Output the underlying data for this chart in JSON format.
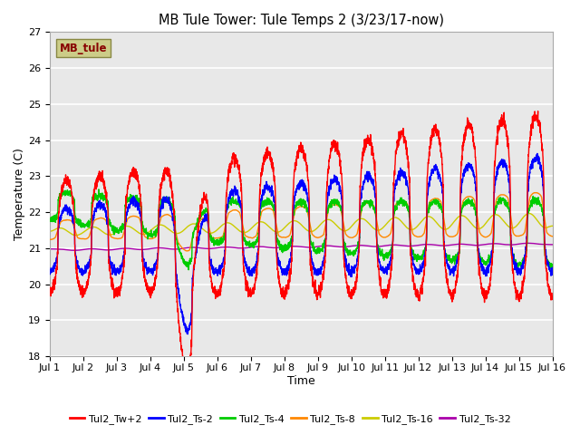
{
  "title": "MB Tule Tower: Tule Temps 2 (3/23/17-now)",
  "xlabel": "Time",
  "ylabel": "Temperature (C)",
  "ylim": [
    18.0,
    27.0
  ],
  "yticks": [
    18.0,
    19.0,
    20.0,
    21.0,
    22.0,
    23.0,
    24.0,
    25.0,
    26.0,
    27.0
  ],
  "xlim": [
    0,
    15
  ],
  "xtick_labels": [
    "Jul 1",
    "Jul 2",
    "Jul 3",
    "Jul 4",
    "Jul 5",
    "Jul 6",
    "Jul 7",
    "Jul 8",
    "Jul 9",
    "Jul 10",
    "Jul 11",
    "Jul 12",
    "Jul 13",
    "Jul 14",
    "Jul 15",
    "Jul 16"
  ],
  "bg_color": "#e8e8e8",
  "series_colors": {
    "Tul2_Tw+2": "#ff0000",
    "Tul2_Ts-2": "#0000ff",
    "Tul2_Ts-4": "#00cc00",
    "Tul2_Ts-8": "#ff8800",
    "Tul2_Ts-16": "#cccc00",
    "Tul2_Ts-32": "#aa00aa"
  },
  "legend_label": "MB_tule",
  "legend_color": "#cccc88",
  "legend_text_color": "#880000"
}
